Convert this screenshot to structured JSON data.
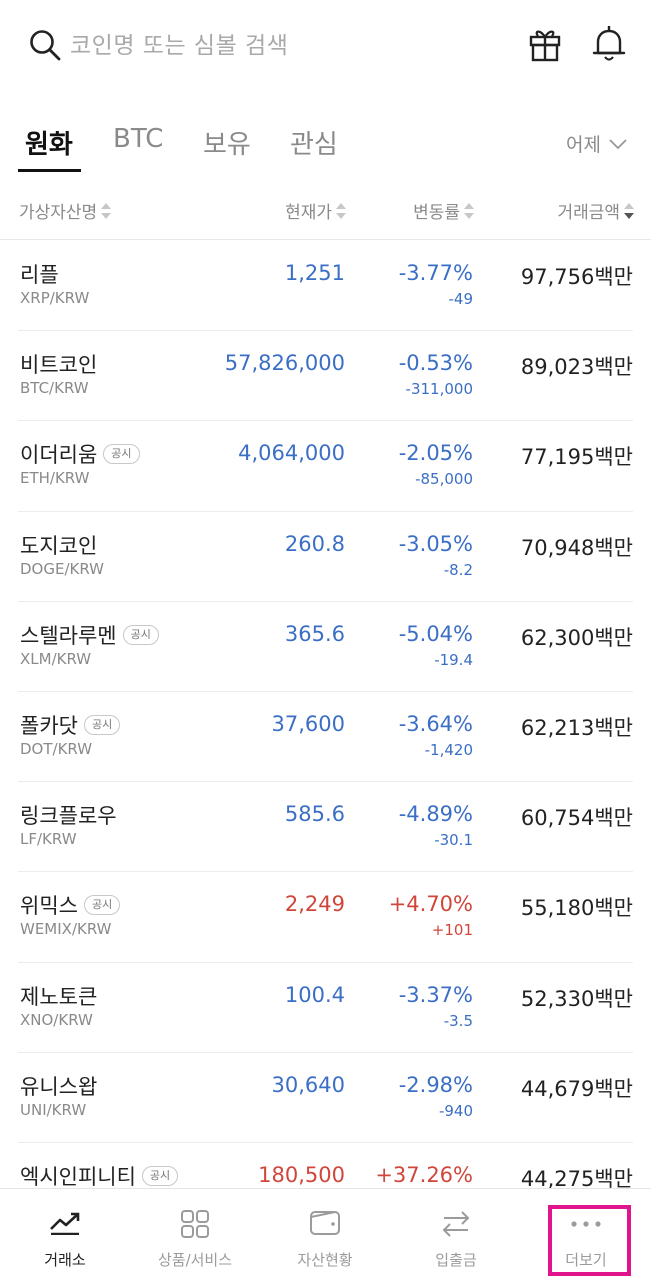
{
  "search": {
    "placeholder": "코인명 또는 심볼 검색"
  },
  "tabs": [
    {
      "label": "원화",
      "active": true
    },
    {
      "label": "BTC",
      "active": false
    },
    {
      "label": "보유",
      "active": false
    },
    {
      "label": "관심",
      "active": false
    }
  ],
  "date_select": {
    "value": "어제"
  },
  "columns": {
    "name": "가상자산명",
    "price": "현재가",
    "change": "변동률",
    "volume": "거래금액"
  },
  "coins": [
    {
      "name": "리플",
      "symbol": "XRP/KRW",
      "notice": "",
      "price": "1,251",
      "rate": "-3.77%",
      "diff": "-49",
      "volume": "97,756백만",
      "trend": "down"
    },
    {
      "name": "비트코인",
      "symbol": "BTC/KRW",
      "notice": "",
      "price": "57,826,000",
      "rate": "-0.53%",
      "diff": "-311,000",
      "volume": "89,023백만",
      "trend": "down"
    },
    {
      "name": "이더리움",
      "symbol": "ETH/KRW",
      "notice": "공시",
      "price": "4,064,000",
      "rate": "-2.05%",
      "diff": "-85,000",
      "volume": "77,195백만",
      "trend": "down"
    },
    {
      "name": "도지코인",
      "symbol": "DOGE/KRW",
      "notice": "",
      "price": "260.8",
      "rate": "-3.05%",
      "diff": "-8.2",
      "volume": "70,948백만",
      "trend": "down"
    },
    {
      "name": "스텔라루멘",
      "symbol": "XLM/KRW",
      "notice": "공시",
      "price": "365.6",
      "rate": "-5.04%",
      "diff": "-19.4",
      "volume": "62,300백만",
      "trend": "down"
    },
    {
      "name": "폴카닷",
      "symbol": "DOT/KRW",
      "notice": "공시",
      "price": "37,600",
      "rate": "-3.64%",
      "diff": "-1,420",
      "volume": "62,213백만",
      "trend": "down"
    },
    {
      "name": "링크플로우",
      "symbol": "LF/KRW",
      "notice": "",
      "price": "585.6",
      "rate": "-4.89%",
      "diff": "-30.1",
      "volume": "60,754백만",
      "trend": "down"
    },
    {
      "name": "위믹스",
      "symbol": "WEMIX/KRW",
      "notice": "공시",
      "price": "2,249",
      "rate": "+4.70%",
      "diff": "+101",
      "volume": "55,180백만",
      "trend": "up"
    },
    {
      "name": "제노토큰",
      "symbol": "XNO/KRW",
      "notice": "",
      "price": "100.4",
      "rate": "-3.37%",
      "diff": "-3.5",
      "volume": "52,330백만",
      "trend": "down"
    },
    {
      "name": "유니스왑",
      "symbol": "UNI/KRW",
      "notice": "",
      "price": "30,640",
      "rate": "-2.98%",
      "diff": "-940",
      "volume": "44,679백만",
      "trend": "down"
    },
    {
      "name": "엑시인피니티",
      "symbol": "",
      "notice": "공시",
      "price": "180,500",
      "rate": "+37.26%",
      "diff": "",
      "volume": "44,275백만",
      "trend": "up"
    }
  ],
  "colors": {
    "down": "#3b6fc5",
    "up": "#d0463b",
    "highlight": "#e0148c"
  },
  "bottom_nav": [
    {
      "label": "거래소",
      "icon": "chart-line-icon",
      "active": true
    },
    {
      "label": "상품/서비스",
      "icon": "grid-icon",
      "active": false
    },
    {
      "label": "자산현황",
      "icon": "wallet-icon",
      "active": false
    },
    {
      "label": "입출금",
      "icon": "transfer-icon",
      "active": false
    },
    {
      "label": "더보기",
      "icon": "more-dots-icon",
      "active": false
    }
  ]
}
